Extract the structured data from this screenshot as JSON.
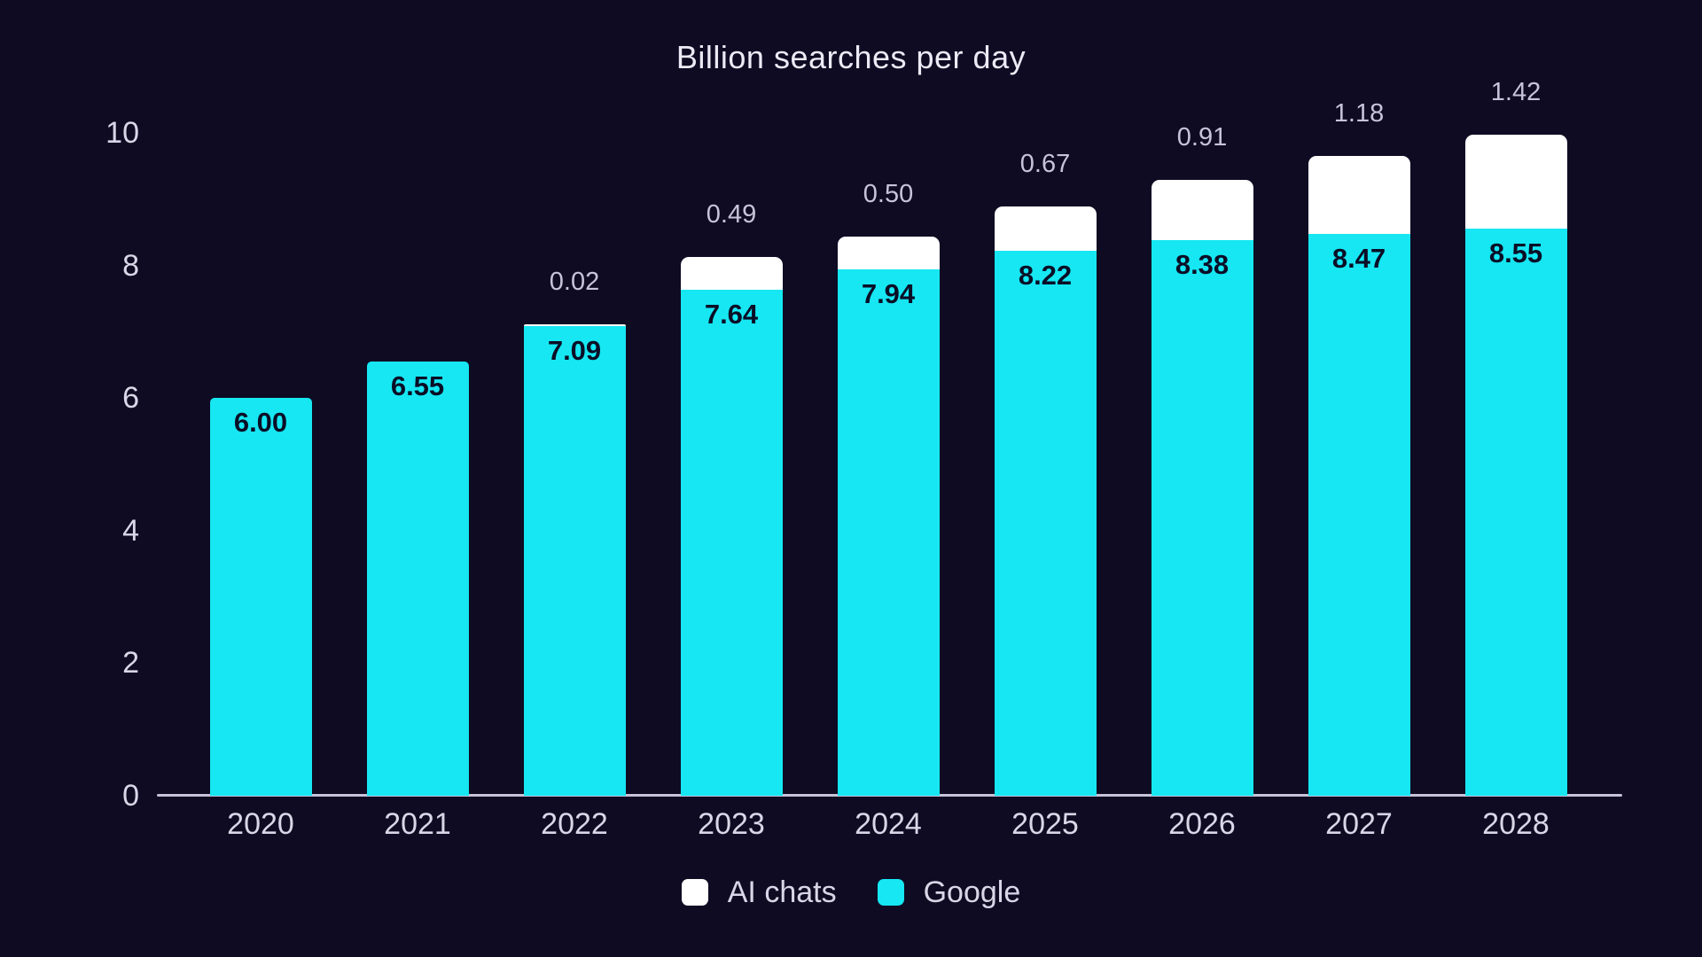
{
  "colors": {
    "background": "#0e0b23",
    "google_bar": "#16e7f2",
    "ai_bar": "#ffffff",
    "axis_line": "#c6c3d8",
    "tick_text": "#d9d6e7",
    "title_text": "#eceaf5",
    "cap_label_text": "#c7c3d8",
    "bar_value_text": "#0a0e26"
  },
  "legend": {
    "position": "bottom",
    "items": [
      {
        "label": "AI chats",
        "color_key": "ai_bar"
      },
      {
        "label": "Google",
        "color_key": "google_bar"
      }
    ]
  },
  "chart_data": {
    "type": "bar",
    "stacked": true,
    "title": "Billion searches per day",
    "xlabel": "",
    "ylabel": "",
    "ylim": [
      0,
      10
    ],
    "yticks": [
      0,
      2,
      4,
      6,
      8,
      10
    ],
    "grid": false,
    "legend_position": "bottom",
    "categories": [
      "2020",
      "2021",
      "2022",
      "2023",
      "2024",
      "2025",
      "2026",
      "2027",
      "2028"
    ],
    "series": [
      {
        "name": "Google",
        "color": "#16e7f2",
        "values": [
          6.0,
          6.55,
          7.09,
          7.64,
          7.94,
          8.22,
          8.38,
          8.47,
          8.55
        ]
      },
      {
        "name": "AI chats",
        "color": "#ffffff",
        "values": [
          null,
          null,
          0.02,
          0.49,
          0.5,
          0.67,
          0.91,
          1.18,
          1.42
        ]
      }
    ]
  }
}
